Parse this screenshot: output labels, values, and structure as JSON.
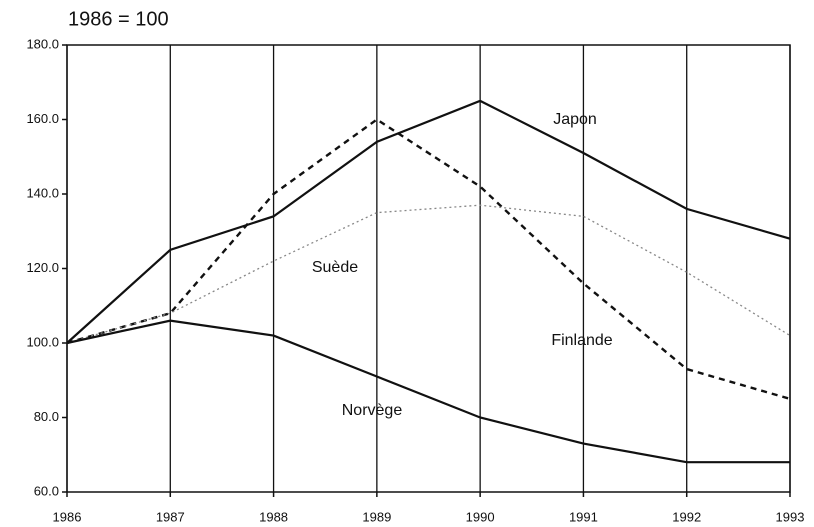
{
  "chart_data": {
    "type": "line",
    "title": "1986 = 100",
    "x": [
      1986,
      1987,
      1988,
      1989,
      1990,
      1991,
      1992,
      1993
    ],
    "xlim": [
      1986,
      1993
    ],
    "xticks": [
      1986,
      1987,
      1988,
      1989,
      1990,
      1991,
      1992,
      1993
    ],
    "ylim": [
      60,
      180
    ],
    "yticks": [
      {
        "value": 60,
        "label": "60.0"
      },
      {
        "value": 80,
        "label": "80.0"
      },
      {
        "value": 100,
        "label": "100.0"
      },
      {
        "value": 120,
        "label": "120.0"
      },
      {
        "value": 140,
        "label": "140.0"
      },
      {
        "value": 160,
        "label": "160.0"
      },
      {
        "value": 180,
        "label": "180.0"
      }
    ],
    "grid": "x",
    "series": [
      {
        "name": "Japon",
        "color": "#111111",
        "style": "solid",
        "values": [
          100,
          125,
          134,
          154,
          165,
          151,
          136,
          128
        ]
      },
      {
        "name": "Finlande",
        "color": "#111111",
        "style": "dashed",
        "values": [
          100,
          108,
          140,
          160,
          142,
          116,
          93,
          85
        ]
      },
      {
        "name": "Suède",
        "color": "#888888",
        "style": "dotted",
        "values": [
          100,
          108,
          122,
          135,
          137,
          134,
          119,
          102
        ]
      },
      {
        "name": "Norvège",
        "color": "#111111",
        "style": "solid",
        "values": [
          100,
          106,
          102,
          91,
          80,
          73,
          68,
          68
        ]
      }
    ]
  }
}
